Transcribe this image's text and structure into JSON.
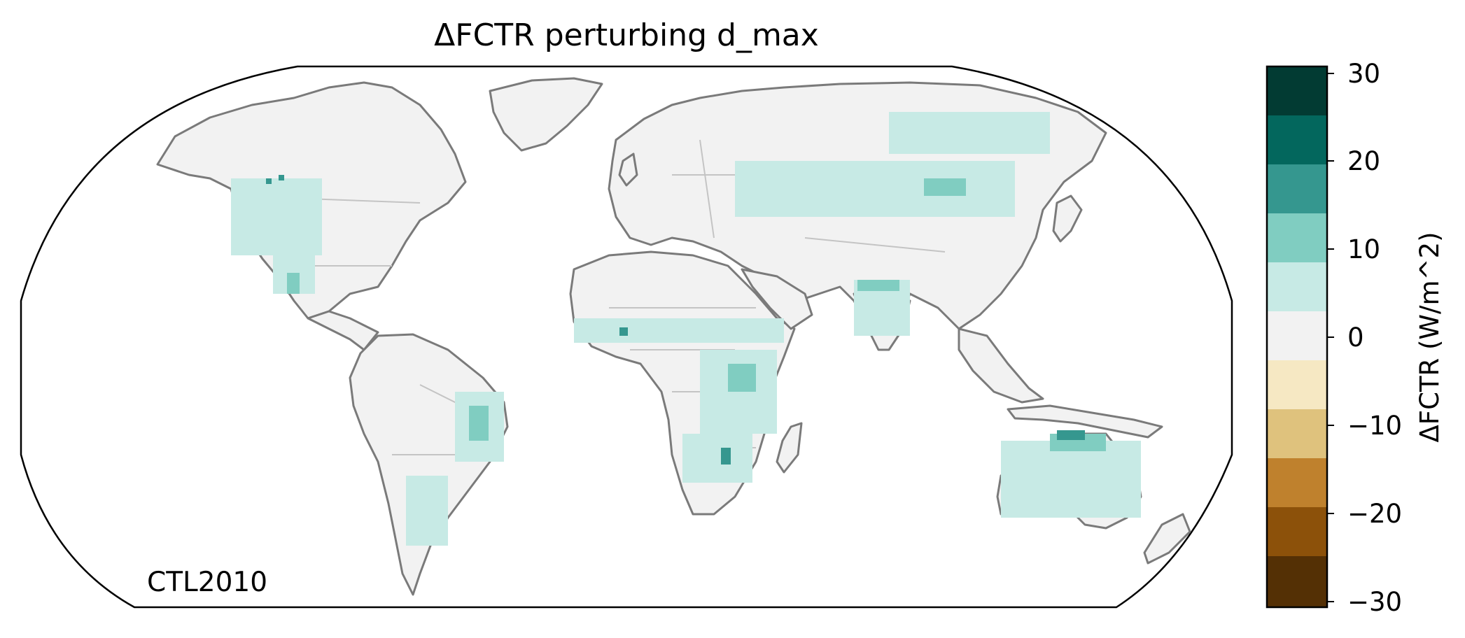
{
  "map": {
    "title": "ΔFCTR perturbing d_max",
    "annotation": "CTL2010",
    "projection": "robinson",
    "land_color": "#f2f2f2",
    "coastline_color": "#7a7a7a",
    "border_color": "#c4c4c4"
  },
  "colorbar": {
    "label": "ΔFCTR (W/m^2)",
    "ticks": [
      "30",
      "20",
      "10",
      "0",
      "−10",
      "−20",
      "−30"
    ],
    "bins": [
      {
        "range": [
          20,
          30
        ],
        "color": "#023b33"
      },
      {
        "range": [
          15,
          20
        ],
        "color": "#03675d"
      },
      {
        "range": [
          10,
          15
        ],
        "color": "#35978f"
      },
      {
        "range": [
          5,
          10
        ],
        "color": "#80cdc1"
      },
      {
        "range": [
          1,
          5
        ],
        "color": "#c7eae5"
      },
      {
        "range": [
          -1,
          1
        ],
        "color": "#f2f2f2"
      },
      {
        "range": [
          -5,
          -1
        ],
        "color": "#f6e8c3"
      },
      {
        "range": [
          -10,
          -5
        ],
        "color": "#dfc27d"
      },
      {
        "range": [
          -15,
          -10
        ],
        "color": "#bf812d"
      },
      {
        "range": [
          -20,
          -15
        ],
        "color": "#8c510a"
      },
      {
        "range": [
          -30,
          -20
        ],
        "color": "#543005"
      }
    ]
  },
  "regions": [
    {
      "name": "western-us",
      "level": "light"
    },
    {
      "name": "mexico",
      "level": "light"
    },
    {
      "name": "brazil",
      "level": "light"
    },
    {
      "name": "argentina",
      "level": "light"
    },
    {
      "name": "sahel",
      "level": "light"
    },
    {
      "name": "east-africa",
      "level": "light"
    },
    {
      "name": "southern-africa",
      "level": "light"
    },
    {
      "name": "central-asia",
      "level": "light"
    },
    {
      "name": "siberia",
      "level": "light"
    },
    {
      "name": "india",
      "level": "light"
    },
    {
      "name": "australia",
      "level": "light"
    },
    {
      "name": "northern-australia",
      "level": "medium"
    },
    {
      "name": "mongolia",
      "level": "medium"
    }
  ]
}
